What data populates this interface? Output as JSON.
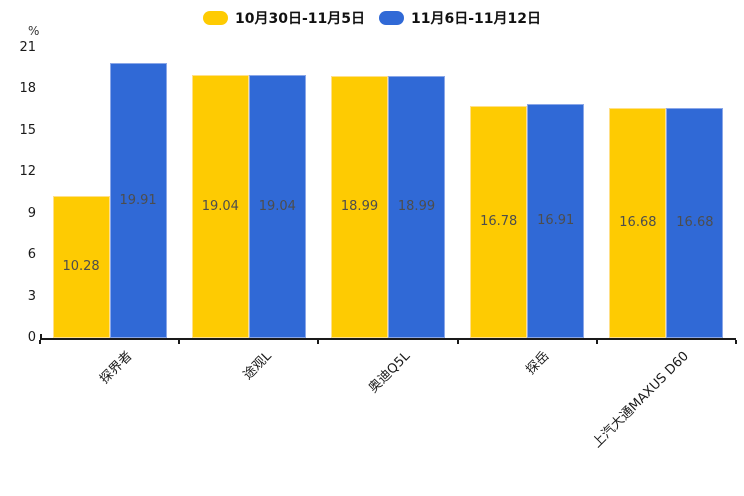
{
  "chart_data": {
    "type": "bar",
    "unit_label": "%",
    "categories": [
      "探界者",
      "途观L",
      "奥迪Q5L",
      "探岳",
      "上汽大通MAXUS D60"
    ],
    "series": [
      {
        "name": "10月30日-11月5日",
        "color": "#FECB02",
        "border_color": "#FFE089",
        "values": [
          10.28,
          19.04,
          18.99,
          16.78,
          16.68
        ]
      },
      {
        "name": "11月6日-11月12日",
        "color": "#3069D6",
        "border_color": "#8AA7E8",
        "values": [
          19.91,
          19.04,
          18.99,
          16.91,
          16.68
        ]
      }
    ],
    "ylim": [
      0,
      21
    ],
    "yticks": [
      0,
      3,
      6,
      9,
      12,
      15,
      18,
      21
    ],
    "legend_position": "top",
    "grid": false,
    "value_label_decimals": 2
  },
  "colors": {
    "background": "#ffffff",
    "axis": "#1a1a1a",
    "value_label": "#4d4d4d"
  }
}
